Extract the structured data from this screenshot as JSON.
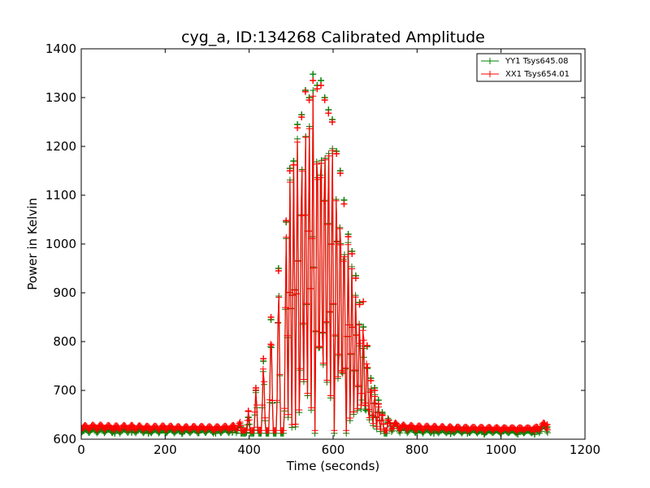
{
  "chart_data": {
    "type": "line",
    "title": "cyg_a, ID:134268 Calibrated Amplitude",
    "xlabel": "Time (seconds)",
    "ylabel": "Power in Kelvin",
    "xlim": [
      0,
      1200
    ],
    "ylim": [
      600,
      1400
    ],
    "xticks": [
      "0",
      "200",
      "400",
      "600",
      "800",
      "1000",
      "1200"
    ],
    "yticks": [
      "600",
      "700",
      "800",
      "900",
      "1000",
      "1100",
      "1200",
      "1300",
      "1400"
    ],
    "grid": false,
    "legend_position": "top-right",
    "marker": "+",
    "series": [
      {
        "name": "YY1 Tsys645.08",
        "color": "#008000",
        "baseline": 612,
        "points": [
          [
            0,
            612
          ],
          [
            40,
            615
          ],
          [
            80,
            612
          ],
          [
            120,
            614
          ],
          [
            160,
            612
          ],
          [
            200,
            613
          ],
          [
            240,
            611
          ],
          [
            280,
            613
          ],
          [
            320,
            612
          ],
          [
            360,
            614
          ],
          [
            380,
            625
          ],
          [
            398,
            645
          ],
          [
            416,
            700
          ],
          [
            434,
            760
          ],
          [
            452,
            845
          ],
          [
            470,
            950
          ],
          [
            488,
            1045
          ],
          [
            497,
            1155
          ],
          [
            506,
            1170
          ],
          [
            515,
            1245
          ],
          [
            525,
            1265
          ],
          [
            534,
            1315
          ],
          [
            543,
            1300
          ],
          [
            552,
            1348
          ],
          [
            562,
            1325
          ],
          [
            571,
            1335
          ],
          [
            580,
            1300
          ],
          [
            589,
            1275
          ],
          [
            598,
            1255
          ],
          [
            608,
            1190
          ],
          [
            617,
            1150
          ],
          [
            626,
            1090
          ],
          [
            636,
            1020
          ],
          [
            645,
            985
          ],
          [
            654,
            935
          ],
          [
            663,
            880
          ],
          [
            672,
            830
          ],
          [
            681,
            790
          ],
          [
            690,
            725
          ],
          [
            699,
            705
          ],
          [
            708,
            680
          ],
          [
            717,
            655
          ],
          [
            730,
            635
          ],
          [
            760,
            618
          ],
          [
            800,
            613
          ],
          [
            840,
            612
          ],
          [
            880,
            611
          ],
          [
            920,
            612
          ],
          [
            960,
            610
          ],
          [
            1000,
            611
          ],
          [
            1040,
            610
          ],
          [
            1080,
            610
          ],
          [
            1110,
            625
          ]
        ]
      },
      {
        "name": "XX1 Tsys654.01",
        "color": "#ff0000",
        "baseline": 618,
        "points": [
          [
            0,
            620
          ],
          [
            40,
            622
          ],
          [
            80,
            620
          ],
          [
            120,
            621
          ],
          [
            160,
            619
          ],
          [
            200,
            620
          ],
          [
            240,
            618
          ],
          [
            280,
            619
          ],
          [
            320,
            618
          ],
          [
            360,
            620
          ],
          [
            380,
            628
          ],
          [
            398,
            658
          ],
          [
            416,
            705
          ],
          [
            434,
            765
          ],
          [
            452,
            850
          ],
          [
            470,
            945
          ],
          [
            488,
            1048
          ],
          [
            497,
            1150
          ],
          [
            506,
            1162
          ],
          [
            515,
            1238
          ],
          [
            525,
            1260
          ],
          [
            534,
            1312
          ],
          [
            543,
            1295
          ],
          [
            552,
            1335
          ],
          [
            562,
            1318
          ],
          [
            571,
            1325
          ],
          [
            580,
            1295
          ],
          [
            589,
            1268
          ],
          [
            598,
            1250
          ],
          [
            608,
            1185
          ],
          [
            617,
            1145
          ],
          [
            626,
            1082
          ],
          [
            636,
            1015
          ],
          [
            645,
            980
          ],
          [
            654,
            930
          ],
          [
            663,
            876
          ],
          [
            672,
            882
          ],
          [
            681,
            792
          ],
          [
            690,
            720
          ],
          [
            699,
            700
          ],
          [
            708,
            672
          ],
          [
            717,
            650
          ],
          [
            730,
            632
          ],
          [
            760,
            622
          ],
          [
            800,
            620
          ],
          [
            840,
            619
          ],
          [
            880,
            618
          ],
          [
            920,
            617
          ],
          [
            960,
            617
          ],
          [
            1000,
            616
          ],
          [
            1040,
            616
          ],
          [
            1080,
            616
          ],
          [
            1110,
            630
          ]
        ]
      }
    ]
  }
}
